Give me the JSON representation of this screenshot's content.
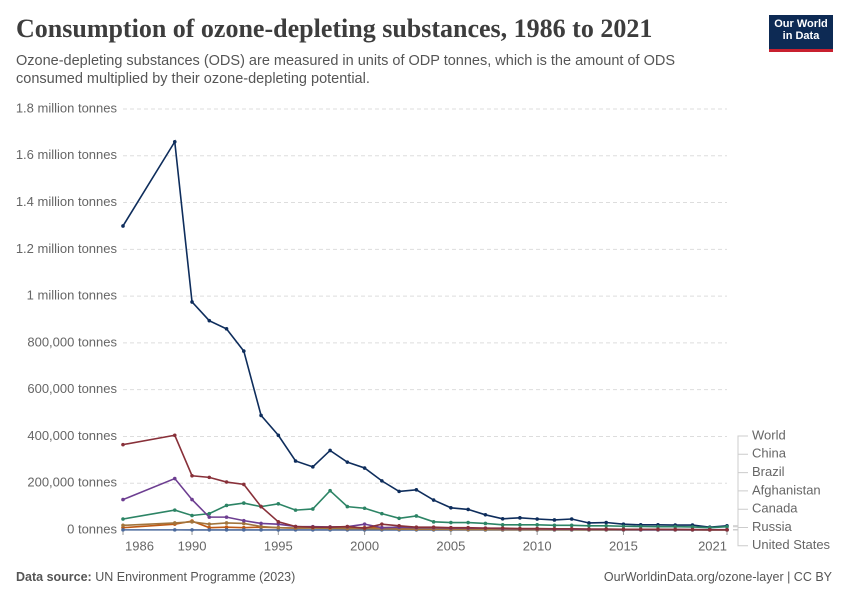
{
  "chart_data": {
    "type": "line",
    "title": "Consumption of ozone-depleting substances, 1986 to 2021",
    "subtitle": "Ozone-depleting substances (ODS) are measured in units of ODP tonnes, which is the amount of ODS consumed multiplied by their ozone-depleting potential.",
    "logo": [
      "Our World",
      "in Data"
    ],
    "source_label": "Data source:",
    "source": "UN Environment Programme (2023)",
    "credit": "OurWorldinData.org/ozone-layer | CC BY",
    "grid": true,
    "xlim": [
      1986,
      2021
    ],
    "xticks": [
      1986,
      1990,
      1995,
      2000,
      2005,
      2010,
      2015,
      2021
    ],
    "ylim": [
      0,
      1800000
    ],
    "yticks": [
      {
        "value": 0,
        "label": "0 tonnes"
      },
      {
        "value": 200000,
        "label": "200,000 tonnes"
      },
      {
        "value": 400000,
        "label": "400,000 tonnes"
      },
      {
        "value": 600000,
        "label": "600,000 tonnes"
      },
      {
        "value": 800000,
        "label": "800,000 tonnes"
      },
      {
        "value": 1000000,
        "label": "1 million tonnes"
      },
      {
        "value": 1200000,
        "label": "1.2 million tonnes"
      },
      {
        "value": 1400000,
        "label": "1.4 million tonnes"
      },
      {
        "value": 1600000,
        "label": "1.6 million tonnes"
      },
      {
        "value": 1800000,
        "label": "1.8 million tonnes"
      }
    ],
    "x": [
      1986,
      1989,
      1990,
      1991,
      1992,
      1993,
      1994,
      1995,
      1996,
      1997,
      1998,
      1999,
      2000,
      2001,
      2002,
      2003,
      2004,
      2005,
      2006,
      2007,
      2008,
      2009,
      2010,
      2011,
      2012,
      2013,
      2014,
      2015,
      2016,
      2017,
      2018,
      2019,
      2020,
      2021
    ],
    "series": [
      {
        "name": "World",
        "color": "#0e2d5c",
        "values": [
          1300000,
          1660000,
          975000,
          895000,
          860000,
          765000,
          490000,
          405000,
          295000,
          270000,
          340000,
          290000,
          265000,
          210000,
          165000,
          172000,
          128000,
          95000,
          88000,
          65000,
          48000,
          52000,
          47000,
          43000,
          47000,
          30000,
          32000,
          25000,
          22000,
          22000,
          21000,
          21000,
          12000,
          18000
        ]
      },
      {
        "name": "China",
        "color": "#2c8465",
        "values": [
          47000,
          85000,
          62000,
          70000,
          105000,
          115000,
          100000,
          112000,
          85000,
          90000,
          168000,
          100000,
          93000,
          70000,
          50000,
          60000,
          35000,
          32000,
          32000,
          28000,
          22000,
          22000,
          22000,
          20000,
          20000,
          18000,
          18000,
          16000,
          15000,
          14000,
          14000,
          13000,
          10000,
          14000
        ]
      },
      {
        "name": "Brazil",
        "color": "#be5915",
        "values": [
          10000,
          25000,
          38000,
          10000,
          12000,
          10000,
          12000,
          10000,
          8000,
          10000,
          10000,
          10000,
          10000,
          10000,
          10000,
          9000,
          8000,
          7000,
          6000,
          5000,
          4000,
          4000,
          4000,
          3000,
          3000,
          2000,
          2000,
          2000,
          1500,
          1500,
          1500,
          1000,
          1000,
          1000
        ]
      },
      {
        "name": "Afghanistan",
        "color": "#4c6a9c",
        "values": [
          500,
          500,
          400,
          400,
          400,
          300,
          300,
          300,
          300,
          300,
          300,
          300,
          300,
          300,
          300,
          300,
          300,
          300,
          300,
          200,
          200,
          200,
          200,
          200,
          200,
          200,
          200,
          100,
          100,
          100,
          100,
          100,
          100,
          100
        ]
      },
      {
        "name": "Canada",
        "color": "#a2753d",
        "values": [
          20000,
          30000,
          35000,
          25000,
          30000,
          28000,
          15000,
          10000,
          8000,
          8000,
          7000,
          6000,
          6000,
          5000,
          4000,
          3000,
          3000,
          2500,
          2000,
          2000,
          1500,
          1500,
          1500,
          1500,
          1500,
          1000,
          1000,
          1000,
          1000,
          800,
          800,
          700,
          600,
          600
        ]
      },
      {
        "name": "Russia",
        "color": "#6d3e91",
        "values": [
          130000,
          220000,
          130000,
          55000,
          55000,
          40000,
          28000,
          25000,
          15000,
          14000,
          13000,
          14000,
          25000,
          10000,
          12000,
          10000,
          10000,
          8000,
          8000,
          8000,
          6000,
          5000,
          5000,
          4000,
          4000,
          3000,
          3000,
          2500,
          2000,
          2000,
          2000,
          1500,
          1500,
          1500
        ]
      },
      {
        "name": "United States",
        "color": "#883039",
        "values": [
          365000,
          405000,
          232000,
          225000,
          205000,
          195000,
          100000,
          35000,
          15000,
          12000,
          12000,
          15000,
          8000,
          25000,
          18000,
          12000,
          12000,
          10000,
          10000,
          8000,
          8000,
          6000,
          6000,
          5000,
          5000,
          4000,
          4000,
          3000,
          3000,
          3000,
          2500,
          2000,
          1000,
          1000
        ]
      }
    ]
  }
}
